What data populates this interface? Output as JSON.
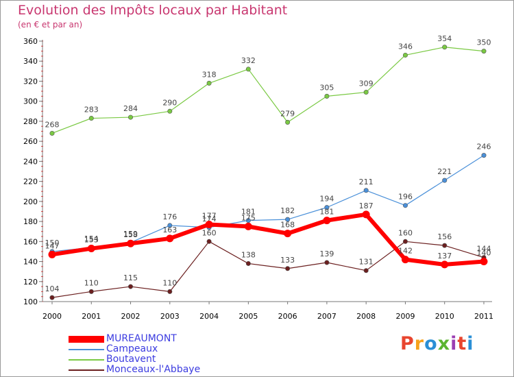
{
  "title": "Evolution des Impôts locaux par Habitant",
  "subtitle": "(en € et par an)",
  "brand": {
    "text": "Proxiti",
    "colors": [
      "#e8452f",
      "#f7a21b",
      "#2a8fd6",
      "#5cb531",
      "#9b3eb2",
      "#e8452f",
      "#2a8fd6"
    ]
  },
  "chart_data": {
    "type": "line",
    "title": "Evolution des Impôts locaux par Habitant",
    "subtitle": "(en € et par an)",
    "xlabel": "",
    "ylabel": "",
    "x": [
      "2000",
      "2001",
      "2002",
      "2003",
      "2004",
      "2005",
      "2006",
      "2007",
      "2008",
      "2009",
      "2010",
      "2011"
    ],
    "ylim": [
      100,
      360
    ],
    "yticks": [
      100,
      120,
      140,
      160,
      180,
      200,
      220,
      240,
      260,
      280,
      300,
      320,
      340,
      360
    ],
    "grid": false,
    "legend_position": "bottom-left",
    "series": [
      {
        "name": "Campeaux",
        "color": "#4a90d9",
        "values": [
          150,
          154,
          159,
          176,
          174,
          181,
          182,
          194,
          211,
          196,
          221,
          246
        ]
      },
      {
        "name": "Boutavent",
        "color": "#7ac943",
        "values": [
          268,
          283,
          284,
          290,
          318,
          332,
          279,
          305,
          309,
          346,
          354,
          350
        ]
      },
      {
        "name": "Monceaux-l'Abbaye",
        "color": "#6b1f1f",
        "values": [
          104,
          110,
          115,
          110,
          160,
          138,
          133,
          139,
          131,
          160,
          156,
          144
        ]
      },
      {
        "name": "MUREAUMONT",
        "color": "#ff0000",
        "values": [
          147,
          153,
          158,
          163,
          177,
          175,
          168,
          181,
          187,
          142,
          137,
          140
        ]
      }
    ],
    "legend_order": [
      "MUREAUMONT",
      "Campeaux",
      "Boutavent",
      "Monceaux-l'Abbaye"
    ]
  }
}
